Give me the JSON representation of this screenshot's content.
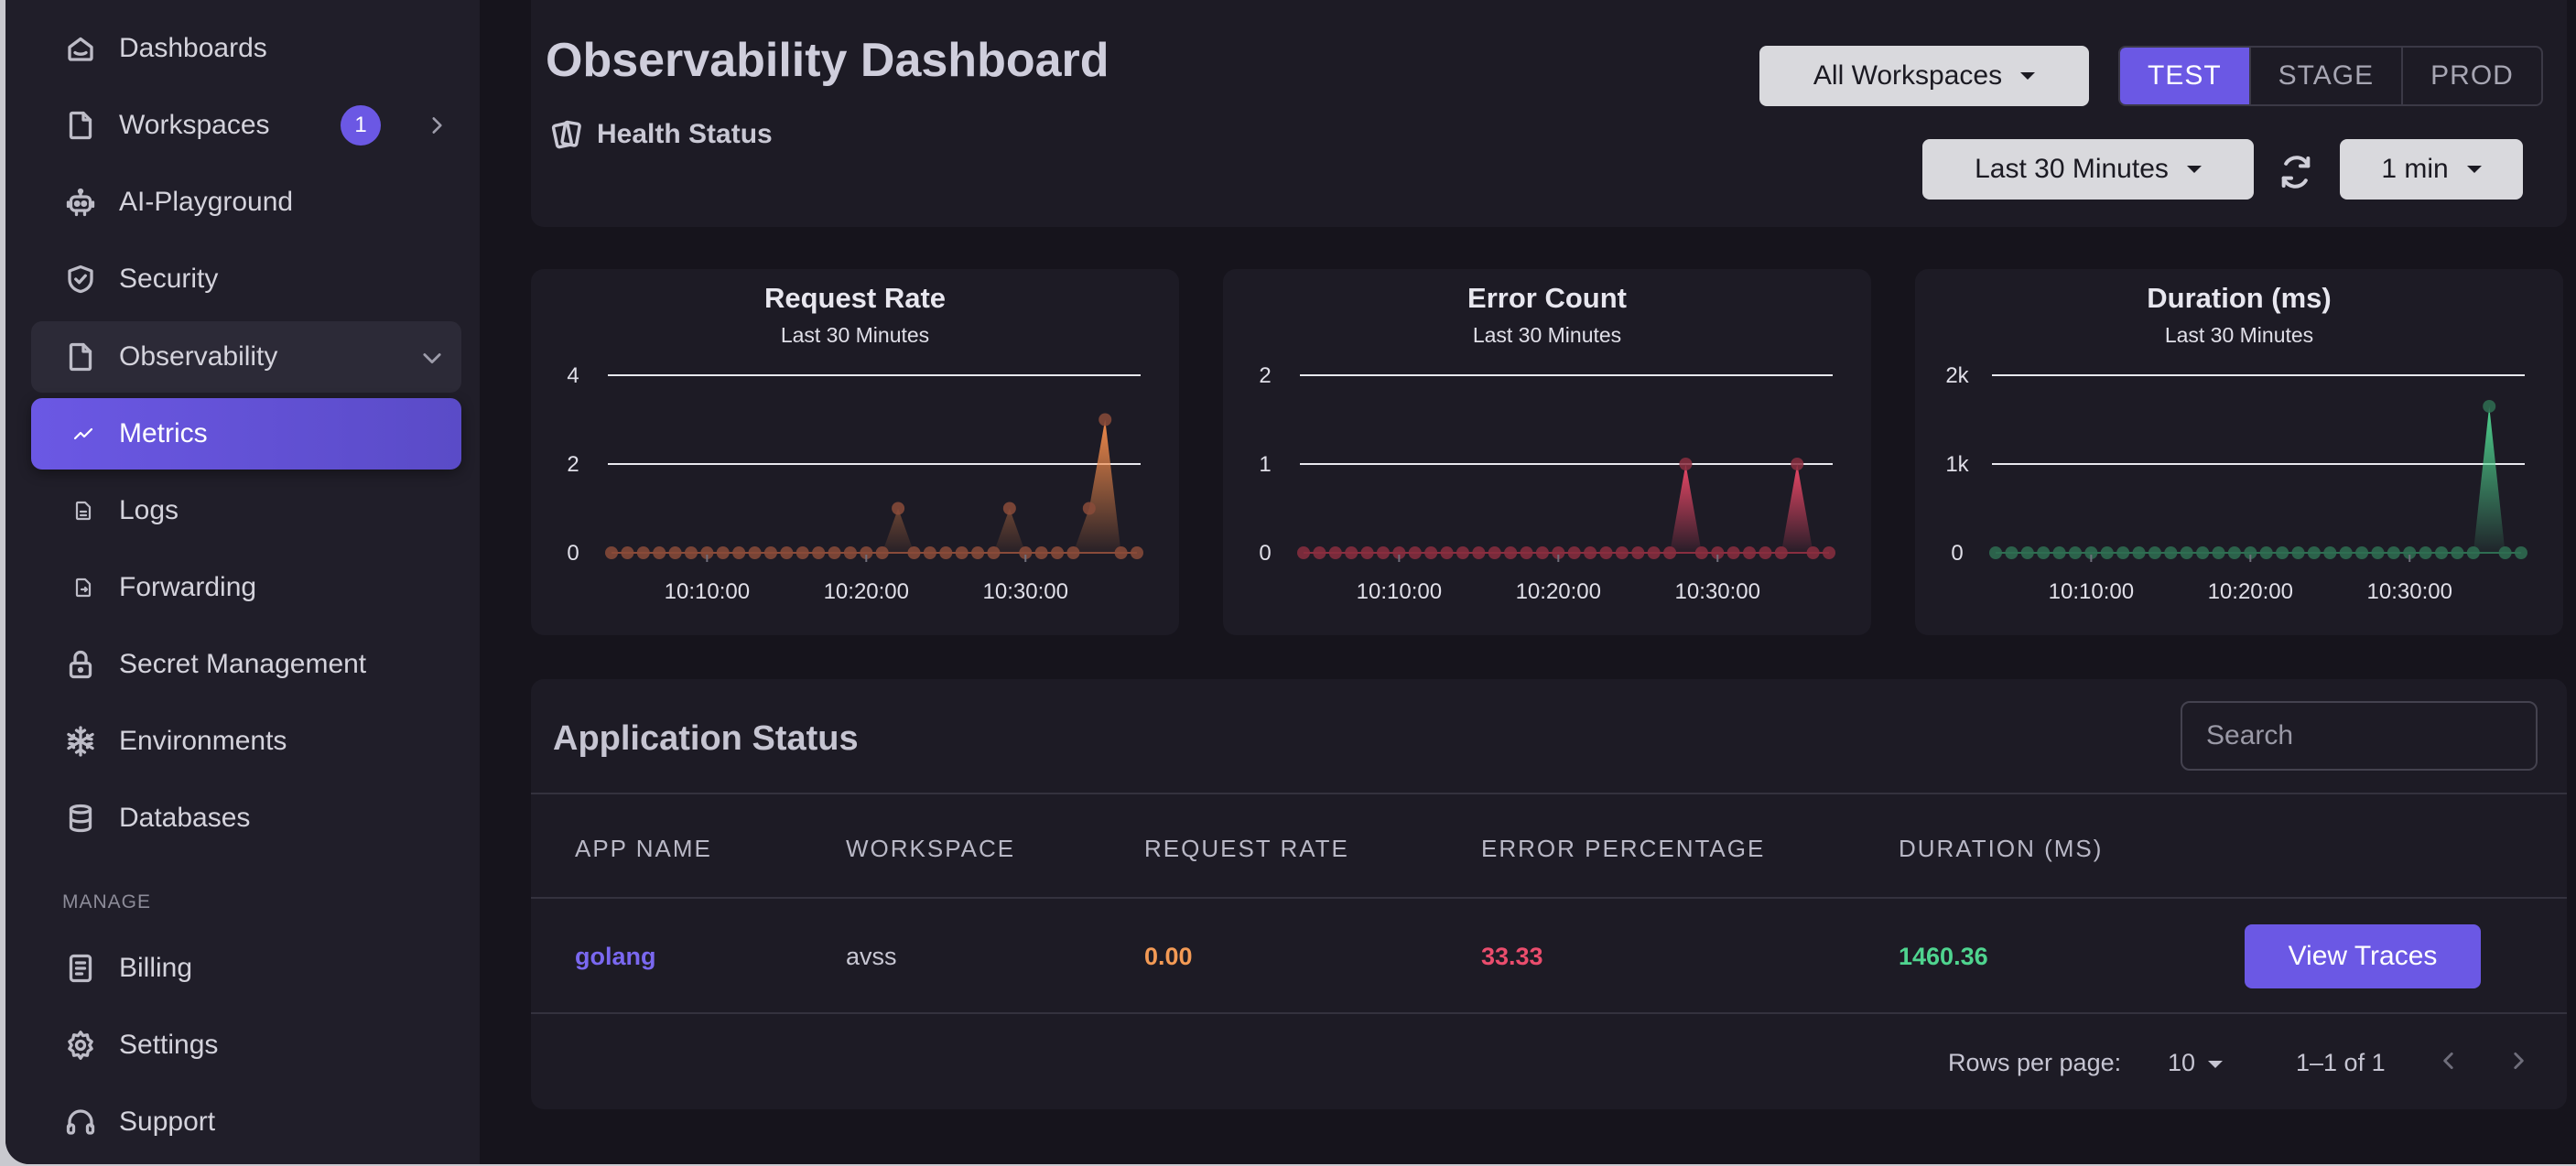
{
  "sidebar": {
    "items": [
      {
        "label": "Dashboards",
        "icon": "home-icon"
      },
      {
        "label": "Workspaces",
        "icon": "document-icon",
        "badge": "1"
      },
      {
        "label": "AI-Playground",
        "icon": "robot-icon"
      },
      {
        "label": "Security",
        "icon": "shield-icon"
      },
      {
        "label": "Observability",
        "icon": "document-icon"
      },
      {
        "label": "Metrics",
        "icon": "trend-icon"
      },
      {
        "label": "Logs",
        "icon": "file-icon"
      },
      {
        "label": "Forwarding",
        "icon": "file-forward-icon"
      },
      {
        "label": "Secret Management",
        "icon": "lock-icon"
      },
      {
        "label": "Environments",
        "icon": "snowflake-icon"
      },
      {
        "label": "Databases",
        "icon": "database-icon"
      },
      {
        "label": "Billing",
        "icon": "receipt-icon"
      },
      {
        "label": "Settings",
        "icon": "gear-icon"
      },
      {
        "label": "Support",
        "icon": "headset-icon"
      }
    ],
    "manage_label": "MANAGE"
  },
  "header": {
    "title": "Observability Dashboard",
    "health_label": "Health Status",
    "workspace_select": "All Workspaces",
    "envs": [
      "TEST",
      "STAGE",
      "PROD"
    ],
    "active_env": "TEST",
    "time_range": "Last 30 Minutes",
    "interval": "1 min"
  },
  "charts": [
    {
      "title": "Request Rate",
      "subtitle": "Last 30 Minutes",
      "y_ticks": [
        "4",
        "2",
        "0"
      ],
      "x_ticks": [
        "10:10:00",
        "10:20:00",
        "10:30:00"
      ],
      "color": "#f08a4b",
      "marker_color": "#8a4b3a"
    },
    {
      "title": "Error Count",
      "subtitle": "Last 30 Minutes",
      "y_ticks": [
        "2",
        "1",
        "0"
      ],
      "x_ticks": [
        "10:10:00",
        "10:20:00",
        "10:30:00"
      ],
      "color": "#ec4867",
      "marker_color": "#8a2e40"
    },
    {
      "title": "Duration (ms)",
      "subtitle": "Last 30 Minutes",
      "y_ticks": [
        "2k",
        "1k",
        "0"
      ],
      "x_ticks": [
        "10:10:00",
        "10:20:00",
        "10:30:00"
      ],
      "color": "#4fd48f",
      "marker_color": "#2f6e52"
    }
  ],
  "chart_data": [
    {
      "type": "area",
      "title": "Request Rate",
      "subtitle": "Last 30 Minutes",
      "ylim": [
        0,
        4
      ],
      "x": [
        "10:04",
        "10:05",
        "10:06",
        "10:07",
        "10:08",
        "10:09",
        "10:10",
        "10:11",
        "10:12",
        "10:13",
        "10:14",
        "10:15",
        "10:16",
        "10:17",
        "10:18",
        "10:19",
        "10:20",
        "10:21",
        "10:22",
        "10:23",
        "10:24",
        "10:25",
        "10:26",
        "10:27",
        "10:28",
        "10:29",
        "10:30",
        "10:31",
        "10:32",
        "10:33",
        "10:34",
        "10:35",
        "10:36",
        "10:37"
      ],
      "values": [
        0,
        0,
        0,
        0,
        0,
        0,
        0,
        0,
        0,
        0,
        0,
        0,
        0,
        0,
        0,
        0,
        0,
        0,
        1,
        0,
        0,
        0,
        0,
        0,
        0,
        1,
        0,
        0,
        0,
        0,
        1,
        3,
        0,
        0
      ]
    },
    {
      "type": "area",
      "title": "Error Count",
      "subtitle": "Last 30 Minutes",
      "ylim": [
        0,
        2
      ],
      "x": [
        "10:04",
        "10:05",
        "10:06",
        "10:07",
        "10:08",
        "10:09",
        "10:10",
        "10:11",
        "10:12",
        "10:13",
        "10:14",
        "10:15",
        "10:16",
        "10:17",
        "10:18",
        "10:19",
        "10:20",
        "10:21",
        "10:22",
        "10:23",
        "10:24",
        "10:25",
        "10:26",
        "10:27",
        "10:28",
        "10:29",
        "10:30",
        "10:31",
        "10:32",
        "10:33",
        "10:34",
        "10:35",
        "10:36",
        "10:37"
      ],
      "values": [
        0,
        0,
        0,
        0,
        0,
        0,
        0,
        0,
        0,
        0,
        0,
        0,
        0,
        0,
        0,
        0,
        0,
        0,
        0,
        0,
        0,
        0,
        0,
        0,
        1,
        0,
        0,
        0,
        0,
        0,
        0,
        1,
        0,
        0
      ]
    },
    {
      "type": "area",
      "title": "Duration (ms)",
      "subtitle": "Last 30 Minutes",
      "ylim": [
        0,
        2000
      ],
      "x": [
        "10:04",
        "10:05",
        "10:06",
        "10:07",
        "10:08",
        "10:09",
        "10:10",
        "10:11",
        "10:12",
        "10:13",
        "10:14",
        "10:15",
        "10:16",
        "10:17",
        "10:18",
        "10:19",
        "10:20",
        "10:21",
        "10:22",
        "10:23",
        "10:24",
        "10:25",
        "10:26",
        "10:27",
        "10:28",
        "10:29",
        "10:30",
        "10:31",
        "10:32",
        "10:33",
        "10:34",
        "10:35",
        "10:36",
        "10:37"
      ],
      "values": [
        0,
        0,
        0,
        0,
        0,
        0,
        0,
        0,
        0,
        0,
        0,
        0,
        0,
        0,
        0,
        0,
        0,
        0,
        0,
        0,
        0,
        0,
        0,
        0,
        0,
        0,
        0,
        0,
        0,
        0,
        0,
        1650,
        0,
        0
      ]
    }
  ],
  "table": {
    "title": "Application Status",
    "search_placeholder": "Search",
    "headers": [
      "APP NAME",
      "WORKSPACE",
      "REQUEST RATE",
      "ERROR PERCENTAGE",
      "DURATION (MS)"
    ],
    "rows": [
      {
        "app": "golang",
        "workspace": "avss",
        "request_rate": "0.00",
        "error_pct": "33.33",
        "duration": "1460.36",
        "action": "View Traces"
      }
    ],
    "footer": {
      "rows_per_page_label": "Rows per page:",
      "rows_per_page": "10",
      "range": "1–1 of 1"
    }
  }
}
